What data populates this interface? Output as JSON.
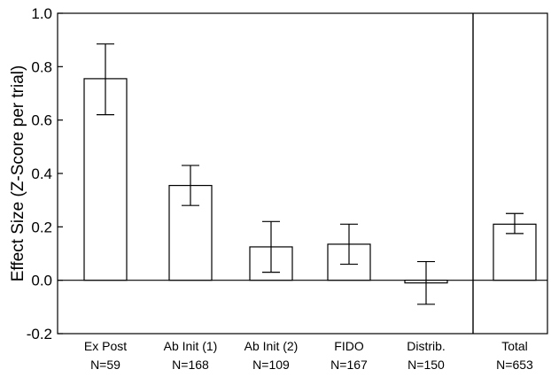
{
  "chart_data": {
    "type": "bar",
    "title": "",
    "xlabel": "",
    "ylabel": "Effect Size (Z-Score per trial)",
    "ylim": [
      -0.2,
      1.0
    ],
    "yticks": [
      "-0.2",
      "0.0",
      "0.2",
      "0.4",
      "0.6",
      "0.8",
      "1.0"
    ],
    "grid": false,
    "categories": [
      {
        "name": "Ex Post",
        "n": "N=59"
      },
      {
        "name": "Ab Init (1)",
        "n": "N=168"
      },
      {
        "name": "Ab Init (2)",
        "n": "N=109"
      },
      {
        "name": "FIDO",
        "n": "N=167"
      },
      {
        "name": "Distrib.",
        "n": "N=150"
      },
      {
        "name": "Total",
        "n": "N=653"
      }
    ],
    "values": [
      0.755,
      0.355,
      0.125,
      0.135,
      -0.01,
      0.21
    ],
    "error_low": [
      0.62,
      0.28,
      0.03,
      0.06,
      -0.09,
      0.175
    ],
    "error_high": [
      0.885,
      0.43,
      0.22,
      0.21,
      0.07,
      0.25
    ],
    "separator_before": "Total",
    "colors": {
      "bar_fill": "#ffffff",
      "stroke": "#000000",
      "background": "#ffffff"
    }
  }
}
